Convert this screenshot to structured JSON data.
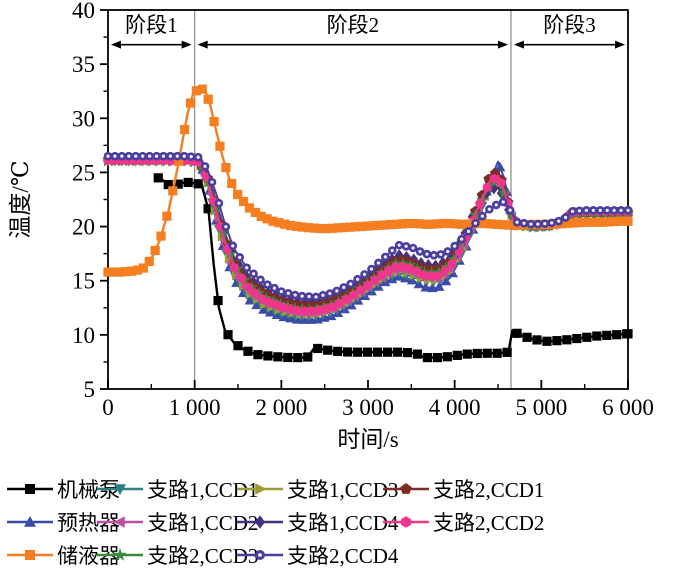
{
  "figure": {
    "background": "#ffffff",
    "axis_color": "#000000",
    "divider_color": "#8a8a8a"
  },
  "chart_data": {
    "type": "line",
    "title": "",
    "xlabel": "时间/s",
    "ylabel": "温度/℃",
    "xlim": [
      0,
      6000
    ],
    "ylim": [
      5,
      40
    ],
    "x_ticks": [
      0,
      1000,
      2000,
      3000,
      4000,
      5000,
      6000
    ],
    "x_tick_labels": [
      "0",
      "1 000",
      "2 000",
      "3 000",
      "4 000",
      "5 000",
      "6 000"
    ],
    "x_minor_ticks": [
      500,
      1500,
      2500,
      3500,
      4500,
      5500
    ],
    "y_ticks": [
      5,
      10,
      15,
      20,
      25,
      30,
      35,
      40
    ],
    "y_tick_labels": [
      "5",
      "10",
      "15",
      "20",
      "25",
      "30",
      "35",
      "40"
    ],
    "y_minor_ticks": [
      7.5,
      12.5,
      17.5,
      22.5,
      27.5,
      32.5,
      37.5
    ],
    "grid": false,
    "legend_position": "bottom",
    "phases": [
      {
        "label": "阶段1",
        "from": 0,
        "to": 1000
      },
      {
        "label": "阶段2",
        "from": 1000,
        "to": 4650
      },
      {
        "label": "阶段3",
        "from": 4650,
        "to": 6000
      }
    ],
    "divider_lines_x": [
      1000,
      4650
    ],
    "annotation_arrow_temp": 36.8,
    "annotation_label_temp": 38.6,
    "plot_order": [
      "mechanical-pump",
      "preheater",
      "branch1-ccd1",
      "branch1-ccd3",
      "branch1-ccd2",
      "branch1-ccd4",
      "branch2-ccd1",
      "branch2-ccd3",
      "branch2-ccd2",
      "reservoir",
      "branch2-ccd4"
    ],
    "series": [
      {
        "id": "mechanical-pump",
        "label": "机械泵",
        "color": "#000000",
        "marker": "square",
        "marker_size": 4.6,
        "marker_every": 115,
        "line_width": 2.4,
        "x": [
          580,
          650,
          720,
          800,
          900,
          1000,
          1080,
          1160,
          1220,
          1280,
          1350,
          1450,
          1550,
          1700,
          1900,
          2100,
          2300,
          2380,
          2450,
          2600,
          2800,
          3000,
          3200,
          3400,
          3550,
          3650,
          3800,
          3950,
          4100,
          4300,
          4500,
          4620,
          4665,
          4750,
          4900,
          5050,
          5250,
          5450,
          5650,
          5850,
          6000
        ],
        "y": [
          24.5,
          24.2,
          23.7,
          23.9,
          24.1,
          24.0,
          23.9,
          21.5,
          16.5,
          12.5,
          10.4,
          9.3,
          8.7,
          8.2,
          8.0,
          7.9,
          7.9,
          8.8,
          8.7,
          8.5,
          8.4,
          8.4,
          8.4,
          8.4,
          8.3,
          7.9,
          7.9,
          8.0,
          8.2,
          8.3,
          8.3,
          8.4,
          10.4,
          10.0,
          9.6,
          9.4,
          9.5,
          9.7,
          9.9,
          10.0,
          10.1
        ]
      },
      {
        "id": "preheater",
        "label": "预热器",
        "color": "#3a4ca8",
        "marker": "triangle-up",
        "marker_size": 4.4,
        "marker_every": 78,
        "line_width": 2,
        "x": [
          0,
          300,
          600,
          900,
          1050,
          1150,
          1250,
          1350,
          1450,
          1600,
          1800,
          2000,
          2200,
          2400,
          2600,
          2800,
          3000,
          3200,
          3350,
          3500,
          3650,
          3800,
          3950,
          4100,
          4250,
          4400,
          4500,
          4570,
          4650,
          4720,
          4900,
          5100,
          5250,
          5350,
          5500,
          5750,
          6000
        ],
        "y": [
          26.4,
          26.4,
          26.4,
          26.4,
          26.2,
          24.0,
          20.5,
          17.5,
          15.2,
          13.4,
          12.3,
          11.7,
          11.4,
          11.4,
          11.8,
          12.7,
          13.8,
          14.9,
          15.4,
          15.1,
          14.4,
          14.3,
          15.3,
          17.5,
          20.5,
          24.0,
          26.0,
          24.5,
          21.3,
          20.2,
          20.0,
          20.1,
          20.5,
          21.2,
          21.4,
          21.4,
          21.4
        ]
      },
      {
        "id": "reservoir",
        "label": "储液器",
        "color": "#f57e20",
        "marker": "square",
        "marker_size": 4.6,
        "marker_every": 68,
        "line_width": 2.4,
        "x": [
          0,
          150,
          300,
          400,
          500,
          600,
          700,
          780,
          850,
          920,
          980,
          1050,
          1120,
          1180,
          1250,
          1320,
          1400,
          1500,
          1620,
          1750,
          1900,
          2100,
          2300,
          2500,
          2700,
          2900,
          3100,
          3300,
          3500,
          3700,
          3900,
          4100,
          4300,
          4500,
          4700,
          4900,
          5100,
          5300,
          5500,
          5700,
          5900,
          6000
        ],
        "y": [
          15.8,
          15.8,
          15.9,
          16.1,
          17.0,
          18.8,
          21.5,
          24.5,
          27.5,
          30.5,
          32.2,
          32.8,
          32.6,
          31.2,
          28.8,
          26.5,
          24.4,
          22.9,
          21.8,
          21.0,
          20.5,
          20.1,
          19.9,
          19.8,
          19.9,
          20.0,
          20.1,
          20.2,
          20.3,
          20.2,
          20.3,
          20.2,
          20.3,
          20.2,
          20.1,
          20.2,
          20.2,
          20.3,
          20.4,
          20.4,
          20.5,
          20.5
        ]
      },
      {
        "id": "branch1-ccd1",
        "label": "支路1,CCD1",
        "color": "#2e8080",
        "marker": "triangle-down",
        "marker_size": 4.2,
        "marker_every": 80,
        "line_width": 2,
        "x": [
          0,
          300,
          600,
          900,
          1050,
          1150,
          1250,
          1350,
          1450,
          1600,
          1800,
          2000,
          2200,
          2400,
          2600,
          2800,
          3000,
          3200,
          3350,
          3500,
          3650,
          3800,
          3950,
          4100,
          4250,
          4400,
          4500,
          4570,
          4650,
          4720,
          4900,
          5100,
          5250,
          5350,
          5500,
          5750,
          6000
        ],
        "y": [
          26.0,
          26.0,
          26.0,
          26.0,
          25.8,
          23.9,
          20.6,
          17.8,
          15.6,
          13.8,
          12.6,
          12.0,
          11.7,
          11.7,
          12.1,
          13.0,
          14.1,
          15.2,
          15.7,
          15.4,
          15.0,
          14.9,
          15.8,
          17.8,
          20.7,
          23.3,
          23.9,
          22.8,
          20.9,
          20.1,
          19.9,
          20.0,
          20.4,
          21.1,
          21.2,
          21.2,
          21.2
        ]
      },
      {
        "id": "branch1-ccd2",
        "label": "支路1,CCD2",
        "color": "#be4fa5",
        "marker": "triangle-left",
        "marker_size": 4.2,
        "marker_every": 79,
        "line_width": 2,
        "x": [
          0,
          300,
          600,
          900,
          1050,
          1150,
          1250,
          1350,
          1450,
          1600,
          1800,
          2000,
          2200,
          2400,
          2600,
          2800,
          3000,
          3200,
          3350,
          3500,
          3650,
          3800,
          3950,
          4100,
          4250,
          4400,
          4500,
          4570,
          4650,
          4720,
          4900,
          5100,
          5250,
          5350,
          5500,
          5750,
          6000
        ],
        "y": [
          26.1,
          26.1,
          26.1,
          26.1,
          25.9,
          24.1,
          21.0,
          18.2,
          16.0,
          14.2,
          13.0,
          12.4,
          12.0,
          12.0,
          12.4,
          13.3,
          14.4,
          15.5,
          16.1,
          15.8,
          15.3,
          15.2,
          16.1,
          18.2,
          21.1,
          23.8,
          24.4,
          23.2,
          21.1,
          20.2,
          20.0,
          20.1,
          20.5,
          21.2,
          21.3,
          21.3,
          21.3
        ]
      },
      {
        "id": "branch1-ccd3",
        "label": "支路1,CCD3",
        "color": "#9c9c33",
        "marker": "triangle-right",
        "marker_size": 4.2,
        "marker_every": 82,
        "line_width": 2,
        "x": [
          0,
          300,
          600,
          900,
          1050,
          1150,
          1250,
          1350,
          1450,
          1600,
          1800,
          2000,
          2200,
          2400,
          2600,
          2800,
          3000,
          3200,
          3350,
          3500,
          3650,
          3800,
          3950,
          4100,
          4250,
          4400,
          4500,
          4570,
          4650,
          4720,
          4900,
          5100,
          5250,
          5350,
          5500,
          5750,
          6000
        ],
        "y": [
          26.0,
          26.0,
          26.0,
          26.0,
          25.9,
          24.0,
          20.8,
          18.0,
          15.8,
          14.0,
          12.8,
          12.2,
          11.9,
          11.9,
          12.3,
          13.2,
          14.3,
          15.4,
          15.9,
          15.6,
          15.1,
          15.0,
          15.9,
          18.0,
          20.9,
          23.5,
          24.1,
          23.0,
          21.0,
          20.1,
          20.0,
          20.0,
          20.4,
          21.1,
          21.2,
          21.2,
          21.2
        ]
      },
      {
        "id": "branch1-ccd4",
        "label": "支路1,CCD4",
        "color": "#46317e",
        "marker": "diamond",
        "marker_size": 4.3,
        "marker_every": 84,
        "line_width": 2,
        "x": [
          0,
          300,
          600,
          900,
          1050,
          1150,
          1250,
          1350,
          1450,
          1600,
          1800,
          2000,
          2200,
          2400,
          2600,
          2800,
          3000,
          3200,
          3350,
          3500,
          3650,
          3800,
          3950,
          4100,
          4250,
          4400,
          4500,
          4570,
          4650,
          4720,
          4900,
          5100,
          5250,
          5350,
          5500,
          5750,
          6000
        ],
        "y": [
          26.3,
          26.3,
          26.3,
          26.3,
          26.1,
          24.8,
          22.2,
          19.4,
          17.2,
          15.4,
          14.1,
          13.4,
          13.0,
          13.0,
          13.4,
          14.3,
          15.4,
          16.6,
          17.4,
          17.1,
          16.5,
          16.4,
          17.1,
          19.1,
          21.8,
          23.4,
          23.6,
          22.6,
          20.9,
          20.2,
          20.1,
          20.1,
          20.5,
          21.3,
          21.3,
          21.3,
          21.3
        ]
      },
      {
        "id": "branch2-ccd1",
        "label": "支路2,CCD1",
        "color": "#7b2d26",
        "marker": "pentagon",
        "marker_size": 4.4,
        "marker_every": 77,
        "line_width": 2,
        "x": [
          0,
          300,
          600,
          900,
          1050,
          1150,
          1250,
          1350,
          1450,
          1600,
          1800,
          2000,
          2200,
          2400,
          2600,
          2800,
          3000,
          3200,
          3350,
          3500,
          3650,
          3800,
          3950,
          4100,
          4250,
          4400,
          4500,
          4570,
          4650,
          4720,
          4900,
          5100,
          5250,
          5350,
          5500,
          5750,
          6000
        ],
        "y": [
          26.2,
          26.2,
          26.2,
          26.2,
          26.0,
          24.6,
          21.9,
          19.1,
          16.9,
          15.1,
          13.8,
          13.1,
          12.7,
          12.7,
          13.1,
          14.0,
          15.1,
          16.3,
          17.0,
          16.7,
          16.1,
          16.0,
          16.8,
          18.9,
          21.7,
          24.6,
          25.1,
          23.8,
          21.3,
          20.2,
          20.1,
          20.1,
          20.5,
          21.3,
          21.3,
          21.3,
          21.3
        ]
      },
      {
        "id": "branch2-ccd2",
        "label": "支路2,CCD2",
        "color": "#f0368c",
        "marker": "hexagon",
        "marker_size": 4.3,
        "marker_every": 81,
        "line_width": 2,
        "x": [
          0,
          300,
          600,
          900,
          1050,
          1150,
          1250,
          1350,
          1450,
          1600,
          1800,
          2000,
          2200,
          2400,
          2600,
          2800,
          3000,
          3200,
          3350,
          3500,
          3650,
          3800,
          3950,
          4100,
          4250,
          4400,
          4500,
          4570,
          4650,
          4720,
          4900,
          5100,
          5250,
          5350,
          5500,
          5750,
          6000
        ],
        "y": [
          26.1,
          26.1,
          26.1,
          26.1,
          26.0,
          24.3,
          21.3,
          18.5,
          16.3,
          14.5,
          13.2,
          12.6,
          12.2,
          12.2,
          12.6,
          13.5,
          14.6,
          15.8,
          16.4,
          16.1,
          15.5,
          15.4,
          16.3,
          18.4,
          21.3,
          24.1,
          24.7,
          23.4,
          21.2,
          20.2,
          20.1,
          20.1,
          20.5,
          21.3,
          21.4,
          21.4,
          21.4
        ]
      },
      {
        "id": "branch2-ccd3",
        "label": "支路2,CCD3",
        "color": "#3c8a3c",
        "marker": "star",
        "marker_size": 4.4,
        "marker_every": 83,
        "line_width": 2,
        "x": [
          0,
          300,
          600,
          900,
          1050,
          1150,
          1250,
          1350,
          1450,
          1600,
          1800,
          2000,
          2200,
          2400,
          2600,
          2800,
          3000,
          3200,
          3350,
          3500,
          3650,
          3800,
          3950,
          4100,
          4250,
          4400,
          4500,
          4570,
          4650,
          4720,
          4900,
          5100,
          5250,
          5350,
          5500,
          5750,
          6000
        ],
        "y": [
          26.1,
          26.1,
          26.1,
          26.1,
          26.0,
          24.4,
          21.6,
          18.8,
          16.6,
          14.8,
          13.5,
          12.8,
          12.4,
          12.4,
          12.8,
          13.7,
          14.8,
          16.0,
          16.7,
          16.4,
          15.8,
          15.7,
          16.5,
          18.6,
          21.4,
          23.8,
          24.2,
          23.0,
          21.0,
          20.1,
          19.9,
          20.0,
          20.4,
          21.2,
          21.2,
          21.2,
          21.2
        ]
      },
      {
        "id": "branch2-ccd4",
        "label": "支路2,CCD4",
        "color": "#4a3e9c",
        "marker": "sphere",
        "marker_size": 4.3,
        "marker_every": 80,
        "line_width": 2,
        "x": [
          0,
          300,
          600,
          900,
          1050,
          1150,
          1250,
          1350,
          1450,
          1600,
          1800,
          2000,
          2200,
          2400,
          2600,
          2800,
          3000,
          3200,
          3350,
          3500,
          3650,
          3800,
          3950,
          4100,
          4250,
          4400,
          4500,
          4570,
          4650,
          4720,
          4900,
          5100,
          5250,
          5350,
          5500,
          5750,
          6000
        ],
        "y": [
          26.5,
          26.5,
          26.5,
          26.5,
          26.4,
          25.2,
          23.0,
          20.2,
          18.0,
          16.2,
          14.8,
          14.0,
          13.6,
          13.5,
          13.9,
          14.7,
          15.8,
          17.2,
          18.3,
          18.1,
          17.5,
          17.3,
          17.8,
          19.0,
          20.4,
          21.6,
          22.1,
          22.3,
          21.4,
          20.4,
          20.2,
          20.3,
          20.6,
          21.4,
          21.5,
          21.5,
          21.5
        ]
      }
    ]
  },
  "legend": {
    "rows": [
      [
        "mechanical-pump",
        "branch1-ccd1",
        "branch1-ccd3",
        "branch2-ccd1"
      ],
      [
        "preheater",
        "branch1-ccd2",
        "branch1-ccd4",
        "branch2-ccd2"
      ],
      [
        "reservoir",
        "branch2-ccd3",
        "branch2-ccd4"
      ]
    ]
  }
}
